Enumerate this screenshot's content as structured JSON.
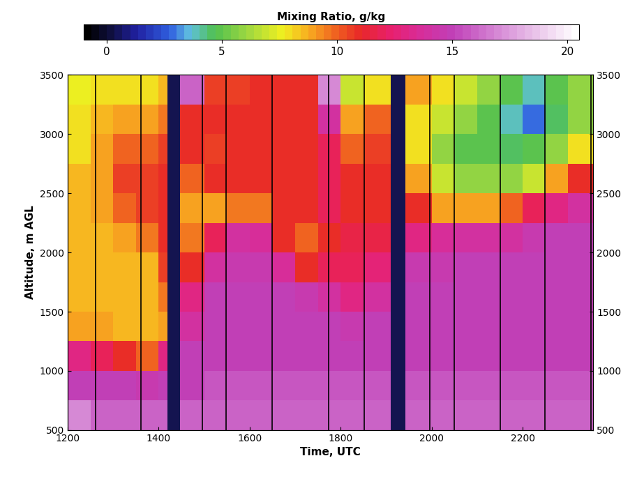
{
  "chart_data": {
    "type": "heatmap",
    "xlabel": "Time, UTC",
    "ylabel": "Altitude, m AGL",
    "colorbar_label": "Mixing Ratio, g/kg",
    "xlim": [
      1200,
      2355
    ],
    "xticks": [
      1200,
      1400,
      1600,
      1800,
      2000,
      2200
    ],
    "ylim": [
      500,
      3500
    ],
    "yticks": [
      500,
      1000,
      1500,
      2000,
      2500,
      3000,
      3500
    ],
    "colorbar_lim": [
      -1,
      20.5
    ],
    "colorbar_ticks": [
      0,
      5,
      10,
      15,
      20
    ],
    "x_edges": [
      1200,
      1250,
      1300,
      1350,
      1400,
      1420,
      1447,
      1500,
      1550,
      1600,
      1650,
      1700,
      1750,
      1800,
      1850,
      1910,
      1943,
      2000,
      2050,
      2100,
      2150,
      2200,
      2250,
      2300,
      2355
    ],
    "y_edges": [
      500,
      750,
      1000,
      1250,
      1500,
      1750,
      2000,
      2250,
      2500,
      2750,
      3000,
      3250,
      3500
    ],
    "cells_by_time": [
      [
        17,
        15,
        13,
        9,
        8.5,
        8.5,
        8.5,
        8.5,
        8.5,
        8,
        8,
        7.5
      ],
      [
        16,
        15,
        12,
        9,
        8.5,
        8.5,
        8.5,
        9,
        9,
        9,
        8.5,
        8
      ],
      [
        16,
        15,
        11,
        8.5,
        8.5,
        8.5,
        9,
        10,
        10.5,
        10,
        9,
        8
      ],
      [
        16,
        14.5,
        10,
        8.5,
        8.5,
        8.5,
        9.5,
        10.5,
        10.5,
        10,
        9,
        8
      ],
      [
        16,
        15,
        13,
        9,
        9.5,
        10.5,
        11,
        11,
        11,
        10.5,
        9.5,
        8.5
      ],
      [
        null,
        null,
        null,
        null,
        null,
        null,
        null,
        null,
        null,
        null,
        null,
        null
      ],
      [
        16,
        15,
        15,
        14,
        13,
        11,
        9.5,
        9,
        10,
        11,
        11,
        16
      ],
      [
        16,
        15.5,
        15,
        15,
        15,
        14,
        12,
        9,
        11,
        10.5,
        11,
        10.5
      ],
      [
        16,
        15.5,
        15,
        15,
        15,
        14.5,
        14,
        9.5,
        11,
        11,
        11,
        10.5
      ],
      [
        16,
        15.5,
        15,
        15,
        15,
        14.5,
        13.5,
        9.5,
        11,
        11,
        11,
        11
      ],
      [
        16,
        15.5,
        15,
        15,
        15,
        13.5,
        11,
        11,
        11,
        11,
        11,
        11
      ],
      [
        16,
        15.5,
        15,
        15,
        14.5,
        11,
        10,
        11,
        11,
        11,
        11,
        11
      ],
      [
        16,
        15.5,
        15,
        15,
        14,
        12,
        11,
        12,
        12,
        12,
        14,
        17
      ],
      [
        16,
        15.5,
        15,
        14.5,
        13,
        12,
        11.5,
        11,
        11,
        10,
        9,
        7
      ],
      [
        16,
        15.5,
        15,
        15,
        14,
        12.5,
        11.5,
        11,
        11,
        10.5,
        10,
        8
      ],
      [
        null,
        null,
        null,
        null,
        null,
        null,
        null,
        null,
        null,
        null,
        null,
        null
      ],
      [
        16,
        15.5,
        15,
        15,
        15,
        14.5,
        13,
        11,
        9,
        8,
        8,
        9
      ],
      [
        16,
        15.5,
        15,
        15,
        15,
        14.5,
        13.5,
        9,
        7,
        6,
        7,
        8
      ],
      [
        16,
        15.5,
        15,
        15,
        15,
        15,
        14,
        9,
        6,
        5,
        6,
        7
      ],
      [
        16,
        15.5,
        15,
        15,
        15,
        15,
        14,
        9,
        6,
        5,
        5,
        6
      ],
      [
        16,
        15.5,
        15,
        15,
        15,
        15,
        14,
        10,
        6,
        4.5,
        4,
        5
      ],
      [
        16,
        15.5,
        15,
        15,
        15,
        15,
        14.5,
        12,
        7,
        5,
        3,
        4
      ],
      [
        16,
        15.5,
        15,
        15,
        15,
        15,
        15,
        13,
        9,
        6,
        4.5,
        5
      ],
      [
        16,
        15.5,
        15,
        15,
        15,
        15,
        15,
        14,
        11,
        8,
        6,
        6
      ]
    ],
    "profile_breaks": [
      1261,
      1361,
      1496,
      1549,
      1650,
      1773,
      1852,
      1996,
      2050,
      2151,
      2249,
      2350
    ]
  }
}
